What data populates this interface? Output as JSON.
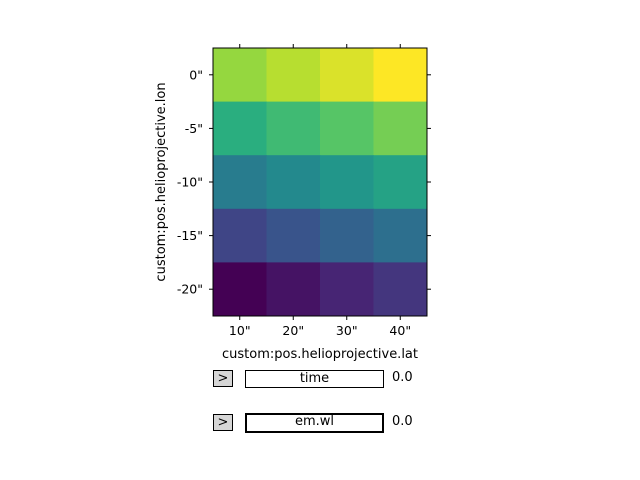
{
  "chart_data": {
    "type": "heatmap",
    "xlabel": "custom:pos.helioprojective.lat",
    "ylabel": "custom:pos.helioprojective.lon",
    "x_ticks": [
      "10\"",
      "20\"",
      "30\"",
      "40\""
    ],
    "y_ticks": [
      "0\"",
      "-5\"",
      "-10\"",
      "-15\"",
      "-20\""
    ],
    "colormap": "viridis",
    "value_range": [
      0,
      19
    ],
    "grid": false,
    "rows": [
      [
        16,
        17,
        18,
        19
      ],
      [
        12,
        13,
        14,
        15
      ],
      [
        8,
        9,
        10,
        11
      ],
      [
        4,
        5,
        6,
        7
      ],
      [
        0,
        1,
        2,
        3
      ]
    ]
  },
  "sliders": [
    {
      "button": ">",
      "label": "time",
      "value": "0.0",
      "active": false
    },
    {
      "button": ">",
      "label": "em.wl",
      "value": "0.0",
      "active": true
    }
  ]
}
